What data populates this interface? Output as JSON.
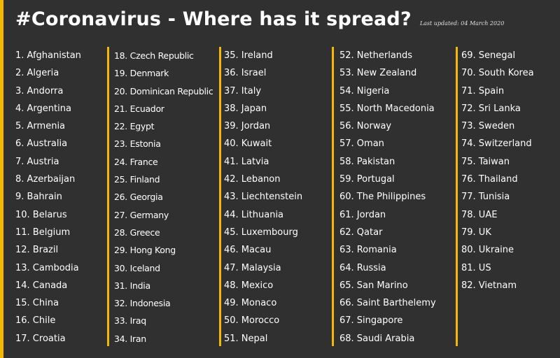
{
  "header": {
    "title": "#Coronavirus - Where has it spread?",
    "updated": "Last updated: 04 March 2020"
  },
  "columns": [
    [
      "1. Afghanistan",
      "2. Algeria",
      "3. Andorra",
      "4. Argentina",
      "5. Armenia",
      "6. Australia",
      "7. Austria",
      "8. Azerbaijan",
      "9. Bahrain",
      "10. Belarus",
      "11. Belgium",
      "12. Brazil",
      "13. Cambodia",
      "14. Canada",
      "15. China",
      "16. Chile",
      "17. Croatia"
    ],
    [
      "18. Czech Republic",
      "19. Denmark",
      "20. Dominican Republic",
      "21. Ecuador",
      "22. Egypt",
      "23. Estonia",
      "24. France",
      "25. Finland",
      "26. Georgia",
      "27. Germany",
      "28. Greece",
      "29. Hong Kong",
      "30. Iceland",
      "31. India",
      "32. Indonesia",
      "33. Iraq",
      "34. Iran"
    ],
    [
      "35. Ireland",
      "36. Israel",
      "37. Italy",
      "38. Japan",
      "39. Jordan",
      "40. Kuwait",
      "41. Latvia",
      "42. Lebanon",
      "43. Liechtenstein",
      "44. Lithuania",
      "45. Luxembourg",
      "46. Macau",
      "47. Malaysia",
      "48. Mexico",
      "49. Monaco",
      "50. Morocco",
      "51. Nepal"
    ],
    [
      "52. Netherlands",
      "53. New Zealand",
      "54. Nigeria",
      "55. North Macedonia",
      "56. Norway",
      "57. Oman",
      "58. Pakistan",
      "59. Portugal",
      "60. The Philippines",
      "61. Jordan",
      "62. Qatar",
      "63. Romania",
      "64. Russia",
      "65. San Marino",
      "66. Saint Barthelemy",
      "67. Singapore",
      "68. Saudi Arabia"
    ],
    [
      "69. Senegal",
      "70. South Korea",
      "71. Spain",
      "72. Sri Lanka",
      "73. Sweden",
      "74. Switzerland",
      "75. Taiwan",
      "76. Thailand",
      "77. Tunisia",
      "78. UAE",
      "79. UK",
      "80. Ukraine",
      "81. US",
      "82. Vietnam"
    ]
  ],
  "colors": {
    "background": "#303030",
    "accent": "#f5b800",
    "text": "#ffffff"
  }
}
